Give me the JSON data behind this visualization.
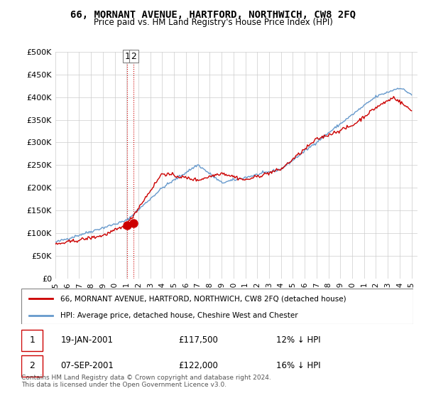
{
  "title": "66, MORNANT AVENUE, HARTFORD, NORTHWICH, CW8 2FQ",
  "subtitle": "Price paid vs. HM Land Registry's House Price Index (HPI)",
  "xlabel": "",
  "ylabel": "",
  "ylim": [
    0,
    500000
  ],
  "yticks": [
    0,
    50000,
    100000,
    150000,
    200000,
    250000,
    300000,
    350000,
    400000,
    450000,
    500000
  ],
  "ytick_labels": [
    "£0",
    "£50K",
    "£100K",
    "£150K",
    "£200K",
    "£250K",
    "£300K",
    "£350K",
    "£400K",
    "£450K",
    "£500K"
  ],
  "background_color": "#ffffff",
  "grid_color": "#cccccc",
  "line_color_red": "#cc0000",
  "line_color_blue": "#6699cc",
  "legend_label_red": "66, MORNANT AVENUE, HARTFORD, NORTHWICH, CW8 2FQ (detached house)",
  "legend_label_blue": "HPI: Average price, detached house, Cheshire West and Chester",
  "sale1_date": "19-JAN-2001",
  "sale1_price": "£117,500",
  "sale1_hpi": "12% ↓ HPI",
  "sale2_date": "07-SEP-2001",
  "sale2_price": "£122,000",
  "sale2_hpi": "16% ↓ HPI",
  "footer": "Contains HM Land Registry data © Crown copyright and database right 2024.\nThis data is licensed under the Open Government Licence v3.0.",
  "vline_color": "#cc0000",
  "vline_style": ":",
  "sale_marker_color": "#cc0000",
  "sale_marker_size": 8
}
